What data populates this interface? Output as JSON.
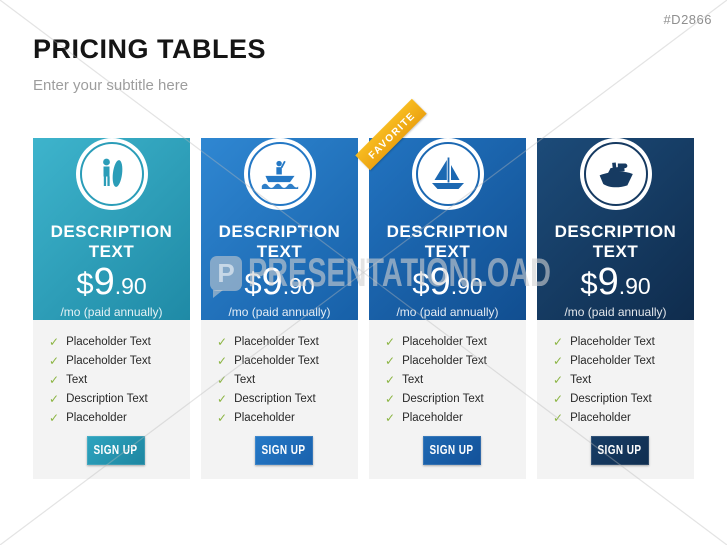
{
  "page": {
    "id_tag": "#D2866",
    "title": "PRICING TABLES",
    "subtitle": "Enter your subtitle here"
  },
  "watermark": {
    "logo_letter": "P",
    "text": "PRESENTATIONLOAD"
  },
  "plans": [
    {
      "icon": "surfer-icon",
      "badge": null,
      "title": "DESCRIPTION TEXT",
      "price": {
        "currency": "$",
        "whole": "9",
        "cents": ".90"
      },
      "caption": "/mo (paid annually)",
      "features": [
        "Placeholder Text",
        "Placeholder Text",
        "Text",
        "Description Text",
        "Placeholder"
      ],
      "button_label": "SIGN UP",
      "colors": {
        "header_from": "#3eb4cc",
        "header_to": "#1f8aa6",
        "icon": "#2b9db8",
        "btn_from": "#2ea4bf",
        "btn_to": "#1e86a1"
      }
    },
    {
      "icon": "motorboat-icon",
      "badge": null,
      "title": "DESCRIPTION TEXT",
      "price": {
        "currency": "$",
        "whole": "9",
        "cents": ".90"
      },
      "caption": "/mo (paid annually)",
      "features": [
        "Placeholder Text",
        "Placeholder Text",
        "Text",
        "Description Text",
        "Placeholder"
      ],
      "button_label": "SIGN UP",
      "colors": {
        "header_from": "#2f87d2",
        "header_to": "#1760a8",
        "icon": "#2478c5",
        "btn_from": "#2579c7",
        "btn_to": "#1961ac"
      }
    },
    {
      "icon": "sailboat-icon",
      "badge": "FAVORITE",
      "title": "DESCRIPTION TEXT",
      "price": {
        "currency": "$",
        "whole": "9",
        "cents": ".90"
      },
      "caption": "/mo (paid annually)",
      "features": [
        "Placeholder Text",
        "Placeholder Text",
        "Text",
        "Description Text",
        "Placeholder"
      ],
      "button_label": "SIGN UP",
      "colors": {
        "header_from": "#2274c1",
        "header_to": "#114e90",
        "icon": "#1c68b2",
        "btn_from": "#1e69b3",
        "btn_to": "#135199"
      }
    },
    {
      "icon": "cruise-ship-icon",
      "badge": null,
      "title": "DESCRIPTION TEXT",
      "price": {
        "currency": "$",
        "whole": "9",
        "cents": ".90"
      },
      "caption": "/mo (paid annually)",
      "features": [
        "Placeholder Text",
        "Placeholder Text",
        "Text",
        "Description Text",
        "Placeholder"
      ],
      "button_label": "SIGN UP",
      "colors": {
        "header_from": "#1c4b79",
        "header_to": "#0f2c4d",
        "icon": "#163a61",
        "btn_from": "#173d66",
        "btn_to": "#102e50"
      }
    }
  ]
}
